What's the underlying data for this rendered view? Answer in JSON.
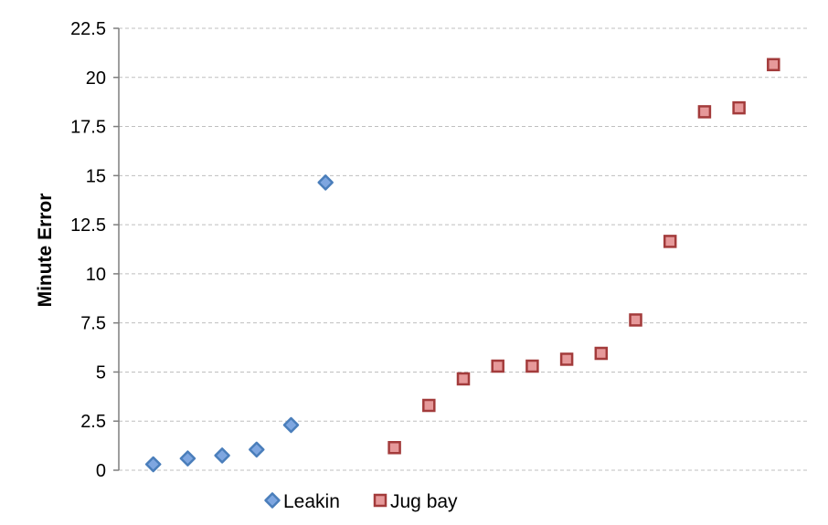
{
  "chart_data": {
    "type": "scatter",
    "title": "",
    "xlabel": "",
    "ylabel": "Minute Error",
    "ylim": [
      0,
      22.5
    ],
    "yticks": [
      "0",
      "2.5",
      "5",
      "7.5",
      "10",
      "12.5",
      "15",
      "17.5",
      "20",
      "22.5"
    ],
    "xlim": [
      0,
      20
    ],
    "grid": true,
    "legend_position": "bottom",
    "series": [
      {
        "name": "Leakin",
        "marker": "diamond",
        "color": "#7ea6e0",
        "edge_color": "#4a7ebb",
        "x": [
          1,
          2,
          3,
          4,
          5,
          6
        ],
        "y": [
          0.3,
          0.6,
          0.75,
          1.05,
          2.3,
          14.65
        ]
      },
      {
        "name": "Jug bay",
        "marker": "square",
        "color": "#e6999a",
        "edge_color": "#a33b3b",
        "x": [
          8,
          9,
          10,
          11,
          12,
          13,
          14,
          15,
          16,
          17,
          18,
          19
        ],
        "y": [
          1.15,
          3.3,
          4.65,
          5.3,
          5.3,
          5.65,
          5.95,
          7.65,
          11.65,
          18.25,
          18.45,
          20.65
        ]
      }
    ]
  }
}
